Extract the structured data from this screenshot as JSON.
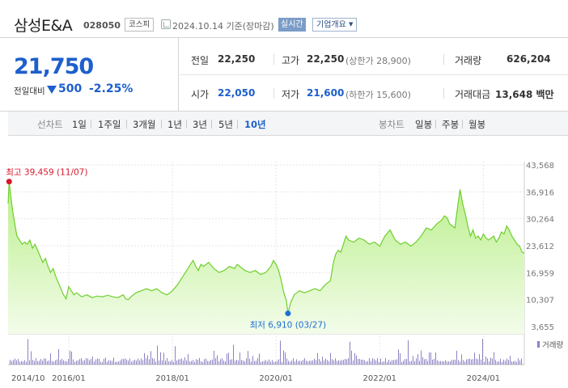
{
  "header": {
    "company_name": "삼성E&A",
    "code": "028050",
    "market": "코스피",
    "date_text": "2024.10.14 기준(장마감)",
    "realtime_label": "실시간",
    "overview_label": "기업개요"
  },
  "summary": {
    "current_price": "21,750",
    "change_label": "전일대비",
    "change_value": "500",
    "change_rate": "-2.25%",
    "prev_close_label": "전일",
    "prev_close": "22,250",
    "high_label": "고가",
    "high": "22,250",
    "upper_limit": "(상한가 28,900)",
    "volume_label": "거래량",
    "volume": "626,204",
    "open_label": "시가",
    "open": "22,050",
    "low_label": "저가",
    "low": "21,600",
    "lower_limit": "(하한가 15,600)",
    "amount_label": "거래대금",
    "amount": "13,648 백만"
  },
  "periods": {
    "line_label": "선차트",
    "line_items": [
      "1일",
      "1주일",
      "3개월",
      "1년",
      "3년",
      "5년",
      "10년"
    ],
    "selected": "10년",
    "candle_label": "봉차트",
    "candle_items": [
      "일봉",
      "주봉",
      "월봉"
    ]
  },
  "colors": {
    "price_down": "#1d5fcc",
    "line": "#6fcf2d",
    "fill_top": "#b9ef8a",
    "fill_bottom": "#f3fcea",
    "high_marker": "#d6182a",
    "low_marker": "#1d6fd6",
    "volume_bar": "#8b83c4"
  },
  "chart_data": {
    "type": "area",
    "title": "",
    "ylabel": "",
    "xlabel": "",
    "ylim": [
      3655,
      43568
    ],
    "y_ticks": [
      "43,568",
      "36,916",
      "30,264",
      "23,612",
      "16,959",
      "10,307",
      "3,655"
    ],
    "x_range": [
      2014.83,
      2024.79
    ],
    "x_ticks": [
      {
        "x": 2014.83,
        "label": "2014/10"
      },
      {
        "x": 2016.0,
        "label": "2016/01"
      },
      {
        "x": 2018.0,
        "label": "2018/01"
      },
      {
        "x": 2020.0,
        "label": "2020/01"
      },
      {
        "x": 2022.0,
        "label": "2022/01"
      },
      {
        "x": 2024.0,
        "label": "2024/01"
      }
    ],
    "high_annotation": "최고 39,459 (11/07)",
    "low_annotation": "최저 6,910 (03/27)",
    "volume_label": "거래량",
    "series": [
      {
        "values": [
          [
            2014.83,
            34000
          ],
          [
            2014.85,
            39459
          ],
          [
            2014.88,
            36000
          ],
          [
            2014.92,
            32000
          ],
          [
            2014.96,
            29000
          ],
          [
            2015.0,
            26000
          ],
          [
            2015.05,
            25000
          ],
          [
            2015.1,
            24000
          ],
          [
            2015.15,
            24500
          ],
          [
            2015.2,
            24000
          ],
          [
            2015.25,
            25000
          ],
          [
            2015.3,
            23000
          ],
          [
            2015.35,
            24000
          ],
          [
            2015.4,
            22500
          ],
          [
            2015.45,
            21000
          ],
          [
            2015.5,
            19500
          ],
          [
            2015.55,
            20500
          ],
          [
            2015.6,
            18500
          ],
          [
            2015.65,
            17000
          ],
          [
            2015.7,
            18000
          ],
          [
            2015.75,
            16000
          ],
          [
            2015.8,
            14500
          ],
          [
            2015.85,
            13000
          ],
          [
            2015.9,
            11500
          ],
          [
            2015.95,
            10500
          ],
          [
            2016.0,
            13500
          ],
          [
            2016.05,
            12500
          ],
          [
            2016.1,
            11500
          ],
          [
            2016.15,
            12000
          ],
          [
            2016.25,
            11000
          ],
          [
            2016.35,
            11500
          ],
          [
            2016.45,
            10800
          ],
          [
            2016.55,
            11200
          ],
          [
            2016.65,
            11000
          ],
          [
            2016.75,
            11400
          ],
          [
            2016.85,
            11000
          ],
          [
            2016.95,
            10800
          ],
          [
            2017.05,
            11500
          ],
          [
            2017.1,
            10500
          ],
          [
            2017.15,
            10300
          ],
          [
            2017.2,
            11000
          ],
          [
            2017.3,
            12000
          ],
          [
            2017.4,
            12500
          ],
          [
            2017.5,
            13000
          ],
          [
            2017.6,
            12500
          ],
          [
            2017.7,
            13000
          ],
          [
            2017.8,
            12000
          ],
          [
            2017.9,
            11500
          ],
          [
            2018.0,
            12500
          ],
          [
            2018.1,
            14000
          ],
          [
            2018.2,
            16000
          ],
          [
            2018.3,
            18000
          ],
          [
            2018.35,
            19000
          ],
          [
            2018.4,
            20000
          ],
          [
            2018.45,
            18500
          ],
          [
            2018.5,
            17500
          ],
          [
            2018.55,
            19000
          ],
          [
            2018.6,
            18500
          ],
          [
            2018.7,
            19500
          ],
          [
            2018.8,
            18000
          ],
          [
            2018.9,
            17000
          ],
          [
            2019.0,
            17500
          ],
          [
            2019.1,
            18500
          ],
          [
            2019.2,
            18000
          ],
          [
            2019.25,
            19000
          ],
          [
            2019.3,
            18500
          ],
          [
            2019.4,
            17500
          ],
          [
            2019.5,
            17000
          ],
          [
            2019.6,
            17500
          ],
          [
            2019.7,
            16500
          ],
          [
            2019.8,
            17000
          ],
          [
            2019.9,
            18500
          ],
          [
            2019.95,
            20000
          ],
          [
            2020.0,
            19000
          ],
          [
            2020.05,
            17500
          ],
          [
            2020.1,
            15000
          ],
          [
            2020.15,
            12000
          ],
          [
            2020.2,
            10000
          ],
          [
            2020.23,
            6910
          ],
          [
            2020.28,
            9500
          ],
          [
            2020.35,
            11500
          ],
          [
            2020.45,
            12500
          ],
          [
            2020.55,
            12000
          ],
          [
            2020.65,
            12500
          ],
          [
            2020.75,
            13000
          ],
          [
            2020.85,
            12500
          ],
          [
            2020.95,
            14000
          ],
          [
            2021.05,
            15000
          ],
          [
            2021.1,
            19000
          ],
          [
            2021.15,
            21500
          ],
          [
            2021.2,
            22500
          ],
          [
            2021.25,
            22000
          ],
          [
            2021.3,
            24000
          ],
          [
            2021.35,
            26000
          ],
          [
            2021.4,
            25000
          ],
          [
            2021.5,
            24500
          ],
          [
            2021.6,
            25500
          ],
          [
            2021.7,
            25000
          ],
          [
            2021.8,
            24000
          ],
          [
            2021.9,
            24500
          ],
          [
            2022.0,
            23500
          ],
          [
            2022.1,
            26000
          ],
          [
            2022.2,
            27500
          ],
          [
            2022.3,
            25000
          ],
          [
            2022.4,
            24000
          ],
          [
            2022.5,
            24500
          ],
          [
            2022.6,
            23500
          ],
          [
            2022.7,
            24500
          ],
          [
            2022.8,
            26000
          ],
          [
            2022.9,
            28000
          ],
          [
            2023.0,
            27500
          ],
          [
            2023.1,
            29000
          ],
          [
            2023.2,
            30000
          ],
          [
            2023.25,
            31000
          ],
          [
            2023.3,
            30500
          ],
          [
            2023.35,
            29000
          ],
          [
            2023.4,
            28500
          ],
          [
            2023.45,
            28000
          ],
          [
            2023.5,
            33000
          ],
          [
            2023.55,
            37500
          ],
          [
            2023.6,
            34000
          ],
          [
            2023.65,
            31500
          ],
          [
            2023.7,
            28500
          ],
          [
            2023.75,
            26000
          ],
          [
            2023.8,
            27500
          ],
          [
            2023.85,
            25500
          ],
          [
            2023.9,
            26000
          ],
          [
            2023.95,
            25000
          ],
          [
            2024.0,
            26500
          ],
          [
            2024.05,
            25500
          ],
          [
            2024.1,
            25000
          ],
          [
            2024.15,
            25500
          ],
          [
            2024.2,
            26000
          ],
          [
            2024.25,
            24500
          ],
          [
            2024.3,
            25500
          ],
          [
            2024.35,
            27000
          ],
          [
            2024.4,
            26500
          ],
          [
            2024.45,
            28500
          ],
          [
            2024.5,
            27500
          ],
          [
            2024.55,
            26000
          ],
          [
            2024.6,
            25000
          ],
          [
            2024.65,
            24000
          ],
          [
            2024.7,
            23500
          ],
          [
            2024.75,
            22000
          ],
          [
            2024.79,
            21750
          ]
        ]
      }
    ]
  }
}
